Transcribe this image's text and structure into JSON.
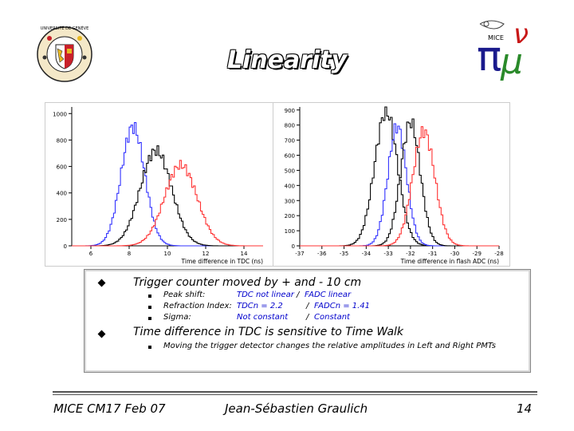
{
  "slide": {
    "title": "Linearity",
    "footer_left": "MICE CM17 Feb 07",
    "footer_center": "Jean-Sébastien Graulich",
    "page_number": "14"
  },
  "logos": {
    "left": {
      "ring_text": "UNIVERSITÉ DE GENÈVE",
      "icon": "university-of-geneva-seal"
    },
    "right": {
      "text": "MICE",
      "icon": "mice-pi-mu-nu-logo",
      "pi": "π",
      "mu": "μ",
      "nu": "ν"
    }
  },
  "bullets": [
    {
      "text": "Trigger counter moved by + and - 10 cm",
      "subitems": [
        {
          "label": "Peak shift:",
          "tdc": "TDC not linear",
          "sep": "/",
          "fadc": "FADC linear"
        },
        {
          "label": "Refraction Index:",
          "tdc": "TDCn = 2.2",
          "sep": "/",
          "fadc": "FADCn = 1.41"
        },
        {
          "label": "Sigma:",
          "tdc": "Not constant",
          "sep": "/",
          "fadc": "Constant"
        }
      ]
    },
    {
      "text": "Time difference in TDC is sensitive to Time Walk",
      "subitems": [
        {
          "label": "Moving the trigger detector changes the relative amplitudes in Left and Right PMTs"
        }
      ]
    }
  ],
  "chart_data": [
    {
      "type": "line",
      "xlabel": "Time difference in TDC (ns)",
      "ylabel": "",
      "xlim": [
        5,
        15
      ],
      "ylim": [
        0,
        1050
      ],
      "x_ticks": [
        6,
        8,
        10,
        12,
        14
      ],
      "y_ticks": [
        0,
        200,
        400,
        600,
        800,
        1000
      ],
      "series": [
        {
          "color": "#3333ff",
          "mean": 8.2,
          "sigma": 0.62,
          "peak": 900
        },
        {
          "color": "#000000",
          "mean": 9.4,
          "sigma": 0.82,
          "peak": 720
        },
        {
          "color": "#ff3333",
          "mean": 10.7,
          "sigma": 0.85,
          "peak": 610
        }
      ]
    },
    {
      "type": "line",
      "xlabel": "Time difference in flash ADC (ns)",
      "ylabel": "",
      "xlim": [
        -37,
        -28
      ],
      "ylim": [
        0,
        920
      ],
      "x_ticks": [
        -37,
        -36,
        -35,
        -34,
        -33,
        -32,
        -31,
        -30,
        -29,
        -28
      ],
      "y_ticks": [
        0,
        100,
        200,
        300,
        400,
        500,
        600,
        700,
        800,
        900
      ],
      "series": [
        {
          "color": "#000000",
          "mean": -33.1,
          "sigma": 0.52,
          "peak": 890
        },
        {
          "color": "#3333ff",
          "mean": -32.6,
          "sigma": 0.42,
          "peak": 790
        },
        {
          "color": "#000000",
          "mean": -32.0,
          "sigma": 0.44,
          "peak": 820
        },
        {
          "color": "#ff3333",
          "mean": -31.4,
          "sigma": 0.5,
          "peak": 760
        }
      ]
    }
  ]
}
